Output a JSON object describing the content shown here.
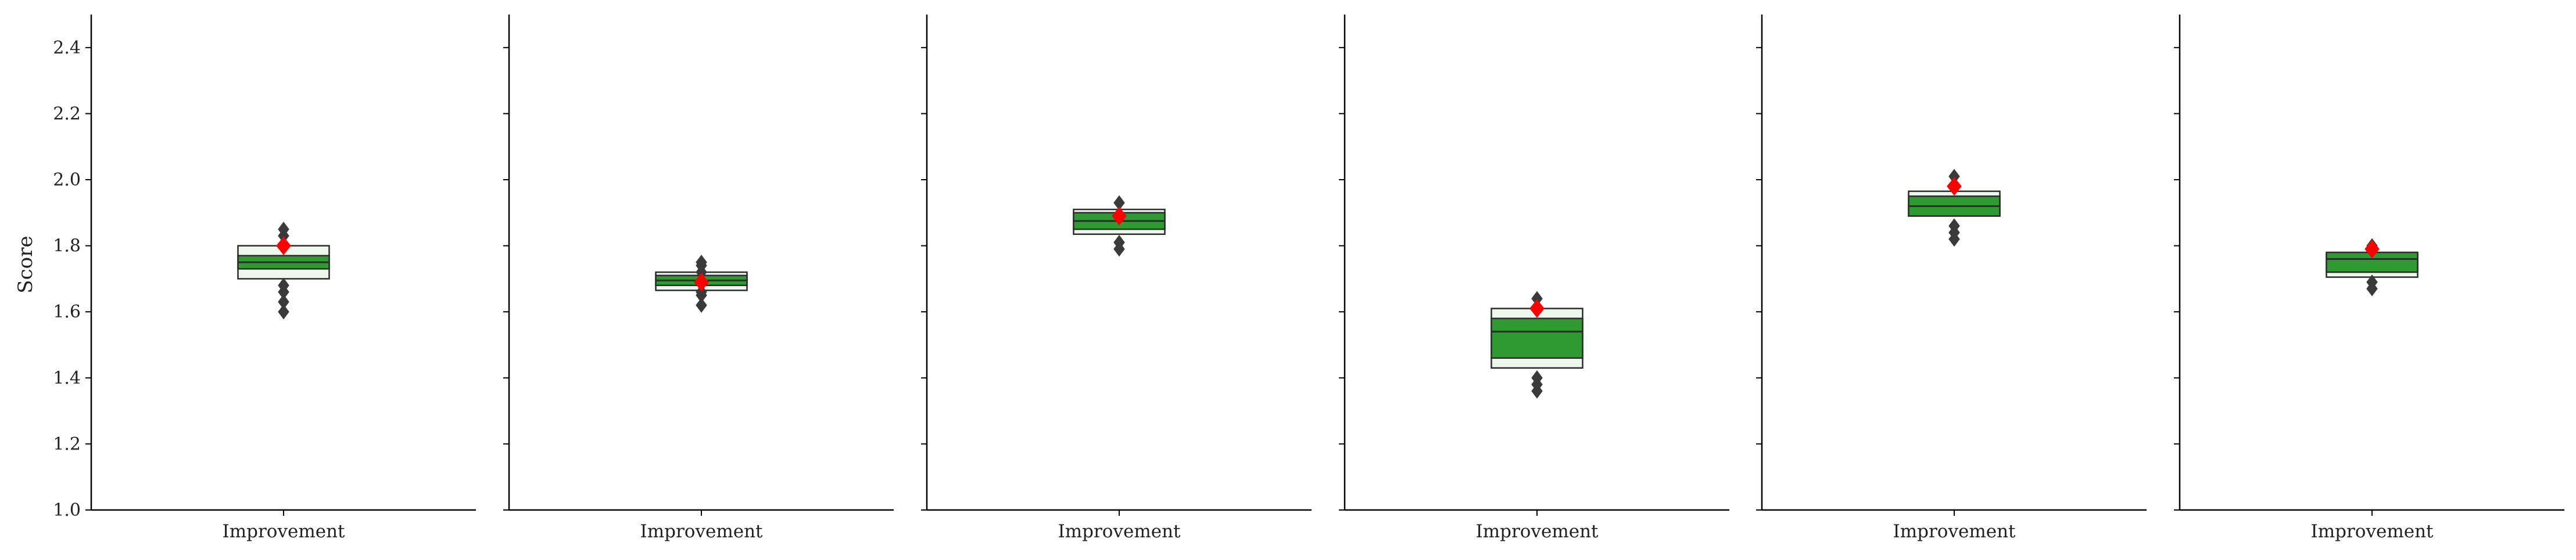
{
  "chart_data": {
    "type": "boxen",
    "ylabel": "Score",
    "ylim": [
      1.0,
      2.5
    ],
    "yticks": [
      "1.0",
      "1.2",
      "1.4",
      "1.6",
      "1.8",
      "2.0",
      "2.2",
      "2.4"
    ],
    "category": "Improvement",
    "panels": [
      {
        "median": 1.75,
        "boxes": [
          {
            "low": 1.7,
            "high": 1.8
          },
          {
            "low": 1.73,
            "high": 1.77
          }
        ],
        "outliers": [
          1.6,
          1.63,
          1.66,
          1.68,
          1.83,
          1.85
        ],
        "mean": 1.8
      },
      {
        "median": 1.695,
        "boxes": [
          {
            "low": 1.665,
            "high": 1.72
          },
          {
            "low": 1.68,
            "high": 1.71
          }
        ],
        "outliers": [
          1.62,
          1.65,
          1.66,
          1.72,
          1.74,
          1.75
        ],
        "mean": 1.69
      },
      {
        "median": 1.875,
        "boxes": [
          {
            "low": 1.835,
            "high": 1.91
          },
          {
            "low": 1.85,
            "high": 1.9
          }
        ],
        "outliers": [
          1.79,
          1.81,
          1.93
        ],
        "mean": 1.89
      },
      {
        "median": 1.54,
        "boxes": [
          {
            "low": 1.43,
            "high": 1.61
          },
          {
            "low": 1.46,
            "high": 1.58
          }
        ],
        "outliers": [
          1.36,
          1.38,
          1.4,
          1.64
        ],
        "mean": 1.61
      },
      {
        "median": 1.92,
        "boxes": [
          {
            "low": 1.89,
            "high": 1.965
          },
          {
            "low": 1.89,
            "high": 1.95
          }
        ],
        "outliers": [
          1.82,
          1.84,
          1.86,
          2.01
        ],
        "mean": 1.98
      },
      {
        "median": 1.76,
        "boxes": [
          {
            "low": 1.705,
            "high": 1.775
          },
          {
            "low": 1.72,
            "high": 1.78
          }
        ],
        "outliers": [
          1.67,
          1.69,
          1.8
        ],
        "mean": 1.79
      }
    ],
    "colors": {
      "box_fill": "#2e9a31",
      "box_outer_fill": "#eef7ee",
      "edge": "#2b2b2b",
      "outlier": "#3a3a3a",
      "mean": "#ff0000",
      "axis": "#000000"
    },
    "grid": false,
    "legend": "none"
  }
}
